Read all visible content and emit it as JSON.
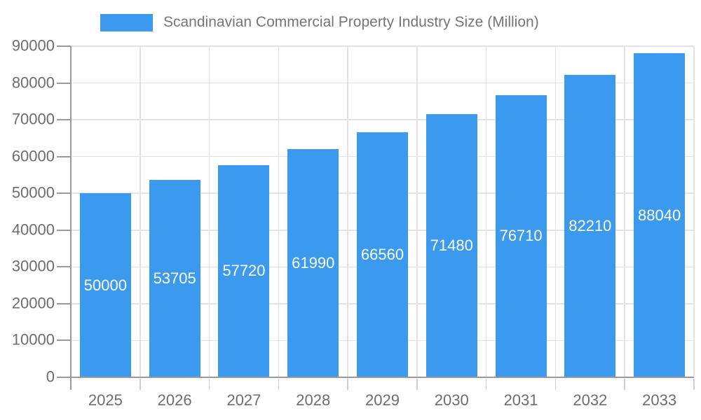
{
  "chart_data": {
    "type": "bar",
    "title": "Scandinavian Commercial Property Industry Size (Million)",
    "categories": [
      "2025",
      "2026",
      "2027",
      "2028",
      "2029",
      "2030",
      "2031",
      "2032",
      "2033"
    ],
    "values": [
      50000,
      53705,
      57720,
      61990,
      66560,
      71480,
      76710,
      82210,
      88040
    ],
    "xlabel": "",
    "ylabel": "",
    "ylim": [
      0,
      90000
    ],
    "yticks": [
      0,
      10000,
      20000,
      30000,
      40000,
      50000,
      60000,
      70000,
      80000,
      90000
    ],
    "grid": true,
    "legend_position": "top",
    "bar_color": "#3B99EE",
    "bar_label_color": "#FFFFFF",
    "grid_color": "#E3E3E3",
    "axis_color": "#9A9A9A",
    "tick_color": "#CFCFCF",
    "tick_label_color": "#6D6D6D",
    "title_color": "#757575"
  }
}
